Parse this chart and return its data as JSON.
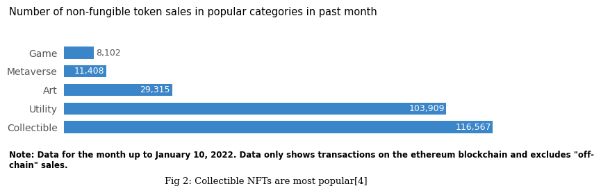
{
  "title": "Number of non-fungible token sales in popular categories in past month",
  "categories": [
    "Game",
    "Metaverse",
    "Art",
    "Utility",
    "Collectible"
  ],
  "values": [
    8102,
    11408,
    29315,
    103909,
    116567
  ],
  "labels": [
    "8,102",
    "11,408",
    "29,315",
    "103,909",
    "116,567"
  ],
  "bar_color": "#3A86C8",
  "background_color": "#ffffff",
  "note_text": "Note: Data for the month up to January 10, 2022. Data only shows transactions on the ethereum blockchain and excludes \"off-\nchain\" sales.",
  "caption": "Fig 2: Collectible NFTs are most popular[4]",
  "title_fontsize": 10.5,
  "label_fontsize": 9,
  "ytick_fontsize": 10,
  "note_fontsize": 8.5,
  "caption_fontsize": 9.5,
  "outside_threshold": 9000,
  "bar_height": 0.65
}
